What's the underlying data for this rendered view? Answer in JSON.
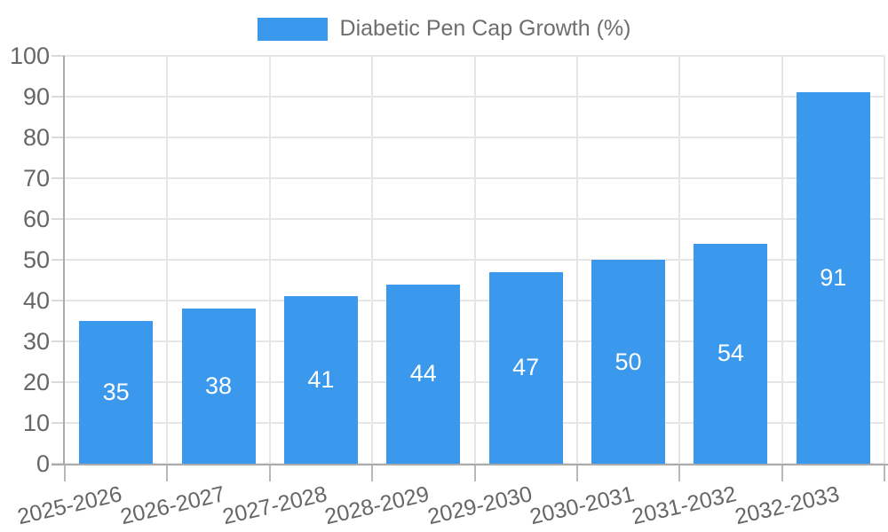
{
  "chart_data": {
    "type": "bar",
    "title": "Diabetic Pen Cap Growth (%)",
    "categories": [
      "2025-2026",
      "2026-2027",
      "2027-2028",
      "2028-2029",
      "2029-2030",
      "2030-2031",
      "2031-2032",
      "2032-2033"
    ],
    "series": [
      {
        "name": "Diabetic Pen Cap Growth (%)",
        "values": [
          35,
          38,
          41,
          44,
          47,
          50,
          54,
          91
        ],
        "color": "#3B99ED"
      }
    ],
    "value_labels": {
      "visible": true,
      "position": "inside-center",
      "color": "#ffffff"
    },
    "xlabel": "",
    "ylabel": "",
    "ylim": [
      0,
      100
    ],
    "yticks": [
      0,
      10,
      20,
      30,
      40,
      50,
      60,
      70,
      80,
      90,
      100
    ],
    "legend_position": "top-center",
    "grid": "both",
    "x_label_rotation_deg": -13,
    "colors": {
      "bar": "#3B99ED",
      "background": "#ffffff",
      "grid_line": "#e6e6e6",
      "axis_line": "#ababab",
      "x_tick_mark": "#b8b8b8",
      "y_tick_mark": "#d9d9d9",
      "axis_text": "#666666",
      "legend_text": "#6e6e6e",
      "value_text": "#ffffff"
    }
  }
}
